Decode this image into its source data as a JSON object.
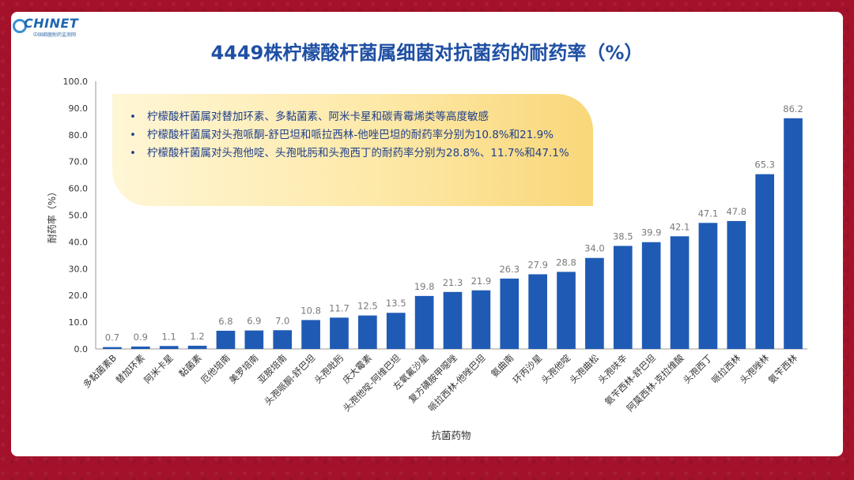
{
  "logo": {
    "name": "CHINET",
    "subtitle": "中国细菌耐药监测网"
  },
  "notes": [
    "柠檬酸杆菌属对替加环素、多黏菌素、阿米卡星和碳青霉烯类等高度敏感",
    "柠檬酸杆菌属对头孢哌酮-舒巴坦和哌拉西林-他唑巴坦的耐药率分别为10.8%和21.9%",
    "柠檬酸杆菌属对头孢他啶、头孢吡肟和头孢西丁的耐药率分别为28.8%、11.7%和47.1%"
  ],
  "chart_data": {
    "type": "bar",
    "title": "4449株柠檬酸杆菌属细菌对抗菌药的耐药率（%）",
    "xlabel": "抗菌药物",
    "ylabel": "耐药率（%）",
    "ylim": [
      0,
      100
    ],
    "yticks": [
      "0.0",
      "10.0",
      "20.0",
      "30.0",
      "40.0",
      "50.0",
      "60.0",
      "70.0",
      "80.0",
      "90.0",
      "100.0"
    ],
    "grid": false,
    "bar_color": "#1f5bb5",
    "categories": [
      "多黏菌素B",
      "替加环素",
      "阿米卡星",
      "黏菌素",
      "厄他培南",
      "美罗培南",
      "亚胺培南",
      "头孢哌酮-舒巴坦",
      "头孢吡肟",
      "庆大霉素",
      "头孢他啶-阿维巴坦",
      "左氧氟沙星",
      "复方磺胺甲噁唑",
      "哌拉西林-他唑巴坦",
      "氨曲南",
      "环丙沙星",
      "头孢他啶",
      "头孢曲松",
      "头孢呋辛",
      "氨苄西林-舒巴坦",
      "阿莫西林-克拉维酸",
      "头孢西丁",
      "哌拉西林",
      "头孢唑林",
      "氨苄西林"
    ],
    "values": [
      0.7,
      0.9,
      1.1,
      1.2,
      6.8,
      6.9,
      7.0,
      10.8,
      11.7,
      12.5,
      13.5,
      19.8,
      21.3,
      21.9,
      26.3,
      27.9,
      28.8,
      34.0,
      38.5,
      39.9,
      42.1,
      47.1,
      47.8,
      65.3,
      86.2
    ],
    "labels": [
      "0.7",
      "0.9",
      "1.1",
      "1.2",
      "6.8",
      "6.9",
      "7.0",
      "10.8",
      "11.7",
      "12.5",
      "13.5",
      "19.8",
      "21.3",
      "21.9",
      "26.3",
      "27.9",
      "28.8",
      "34.0",
      "38.5",
      "39.9",
      "42.1",
      "47.1",
      "47.8",
      "65.3",
      "86.2"
    ]
  }
}
